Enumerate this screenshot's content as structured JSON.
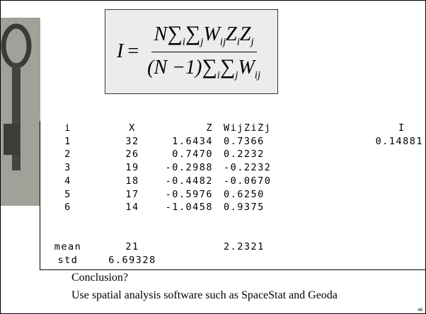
{
  "formula": {
    "lhs": "I",
    "equals": "=",
    "numerator": {
      "n": "N",
      "sum1": "∑",
      "sub1": "i",
      "sum2": "∑",
      "sub2": "j",
      "w": "W",
      "wsub": "ij",
      "z1": "Z",
      "z1sub": "i",
      "z2": "Z",
      "z2sub": "j"
    },
    "denominator": {
      "factor": "(N −1)",
      "sum1": "∑",
      "sub1": "i",
      "sum2": "∑",
      "sub2": "j",
      "w": "W",
      "wsub": "ij"
    }
  },
  "table": {
    "header": [
      "i",
      "X",
      "Z",
      "WijZiZj",
      "I"
    ],
    "rows": [
      [
        "1",
        "32",
        "1.6434",
        "0.7366",
        "0.14881"
      ],
      [
        "2",
        "26",
        "0.7470",
        "0.2232"
      ],
      [
        "3",
        "19",
        "-0.2988",
        "-0.2232"
      ],
      [
        "4",
        "18",
        "-0.4482",
        "-0.0670"
      ],
      [
        "5",
        "17",
        "-0.5976",
        "0.6250"
      ],
      [
        "6",
        "14",
        "-1.0458",
        "0.9375"
      ]
    ],
    "summary": [
      [
        "mean",
        "21",
        null,
        "2.2321"
      ],
      [
        "std",
        "6.69328"
      ]
    ]
  },
  "conclusion": [
    "Conclusion?",
    "Use spatial analysis software such as SpaceStat and Geoda"
  ],
  "page_number": "48"
}
